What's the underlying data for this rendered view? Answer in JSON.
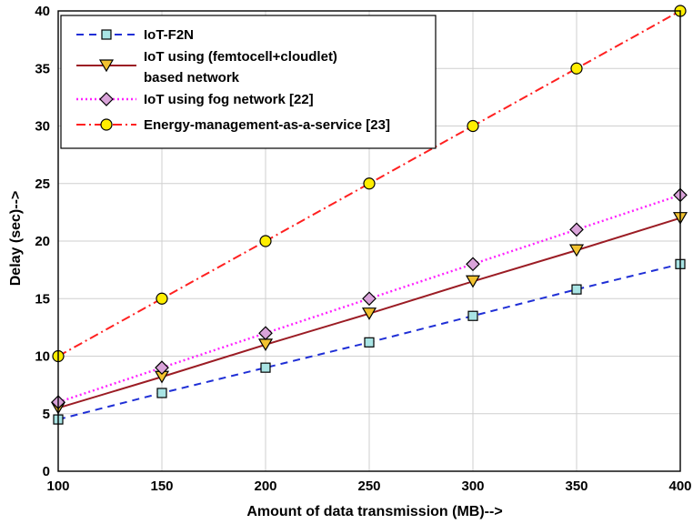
{
  "chart_data": {
    "type": "line",
    "title": "",
    "xlabel": "Amount of data transmission (MB)-->",
    "ylabel": "Delay (sec)-->",
    "x": [
      100,
      150,
      200,
      250,
      300,
      350,
      400
    ],
    "xlim": [
      100,
      400
    ],
    "ylim": [
      0,
      40
    ],
    "xticks": [
      100,
      150,
      200,
      250,
      300,
      350,
      400
    ],
    "yticks": [
      0,
      5,
      10,
      15,
      20,
      25,
      30,
      35,
      40
    ],
    "grid": true,
    "legend_position": "top-left",
    "series": [
      {
        "name": "IoT-F2N",
        "values": [
          4.5,
          6.8,
          9.0,
          11.2,
          13.5,
          15.8,
          18.0
        ],
        "color": "#1f2fd6",
        "line_style": "dashed",
        "marker": "square",
        "marker_fill": "#a9e4e4"
      },
      {
        "name_lines": [
          "IoT using (femtocell+cloudlet)",
          "based network"
        ],
        "values": [
          5.5,
          8.2,
          11.0,
          13.7,
          16.5,
          19.2,
          22.0
        ],
        "color": "#9b1c24",
        "line_style": "solid",
        "marker": "triangle-down",
        "marker_fill": "#f2c230"
      },
      {
        "name": "IoT using fog network [22]",
        "values": [
          6.0,
          9.0,
          12.0,
          15.0,
          18.0,
          21.0,
          24.0
        ],
        "color": "#ff22ff",
        "line_style": "dotted",
        "marker": "diamond",
        "marker_fill": "#d9a3d9"
      },
      {
        "name": "Energy-management-as-a-service [23]",
        "values": [
          10.0,
          15.0,
          20.0,
          25.0,
          30.0,
          35.0,
          40.0
        ],
        "color": "#ff2020",
        "line_style": "dash-dot",
        "marker": "circle",
        "marker_fill": "#ffee00"
      }
    ]
  }
}
